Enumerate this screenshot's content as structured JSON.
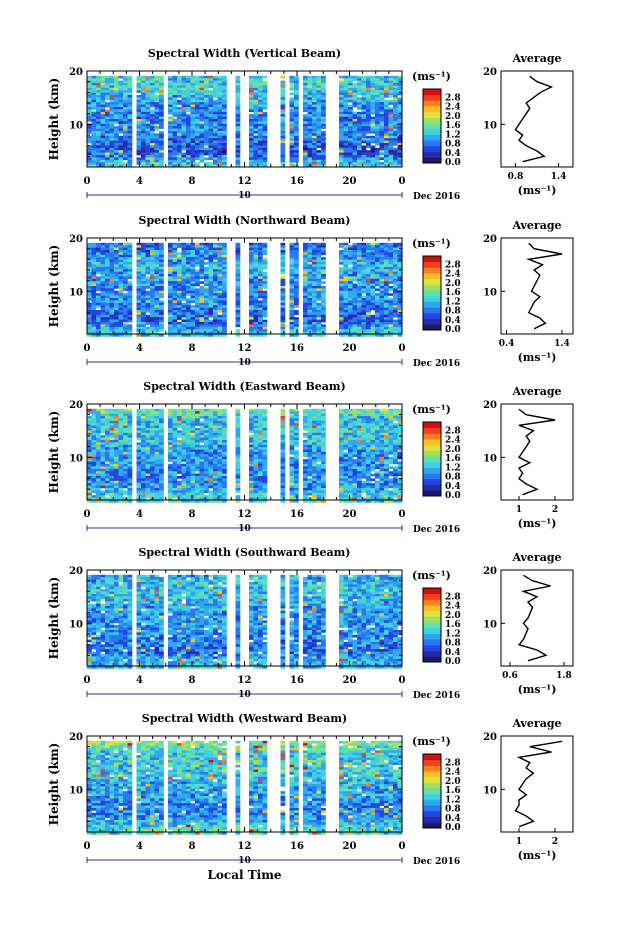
{
  "figure": {
    "xlabel": "Local Time",
    "date_label": "Dec 2016",
    "day_label": "10",
    "ylabel": "Height (km)",
    "colorbar_unit": "(ms⁻¹)",
    "avg_title": "Average",
    "avg_xlabel": "(ms⁻¹)"
  },
  "colors": {
    "scale": [
      "#1a1a66",
      "#2a2aa8",
      "#2048e0",
      "#2a78f0",
      "#30a8f0",
      "#40d0e0",
      "#60e0b0",
      "#a0e060",
      "#e0e040",
      "#f8c020",
      "#f88020",
      "#f04020",
      "#d01010"
    ],
    "gap": "#ffffff",
    "frame": "#000000"
  },
  "chart_data": [
    {
      "type": "heatmap",
      "title": "Spectral Width (Vertical Beam)",
      "x_ticks": [
        "0",
        "4",
        "8",
        "12",
        "16",
        "20",
        "0"
      ],
      "xlim": [
        0,
        24
      ],
      "y_ticks": [
        "20",
        "10"
      ],
      "ylim": [
        2,
        20
      ],
      "colorbar_ticks": [
        "2.8",
        "2.4",
        "2.0",
        "1.6",
        "1.2",
        "0.8",
        "0.4",
        "0.0"
      ],
      "colorbar_range": [
        0,
        3.2
      ],
      "data_gaps_hours": [
        [
          3.3,
          3.6
        ],
        [
          5.6,
          6.0
        ],
        [
          10.5,
          11.1
        ],
        [
          11.6,
          12.0
        ],
        [
          13.7,
          14.6
        ],
        [
          15.0,
          15.3
        ],
        [
          15.8,
          16.4
        ],
        [
          18.1,
          19.2
        ]
      ],
      "level_by_height": [
        [
          3,
          1.3
        ],
        [
          5,
          0.6
        ],
        [
          7,
          0.8
        ],
        [
          9,
          1.0
        ],
        [
          11,
          0.9
        ],
        [
          13,
          1.0
        ],
        [
          15,
          1.1
        ],
        [
          17,
          1.4
        ],
        [
          19,
          1.3
        ]
      ],
      "average": {
        "x_ticks": [
          "0.8",
          "1.4"
        ],
        "xlim": [
          0.6,
          1.6
        ],
        "y_ticks": [
          "20",
          "10"
        ],
        "profile": [
          [
            3,
            0.9
          ],
          [
            4,
            1.2
          ],
          [
            5,
            1.1
          ],
          [
            6,
            0.95
          ],
          [
            7,
            0.85
          ],
          [
            8,
            0.9
          ],
          [
            9,
            0.8
          ],
          [
            10,
            0.85
          ],
          [
            11,
            0.9
          ],
          [
            12,
            0.95
          ],
          [
            13,
            1.0
          ],
          [
            14,
            0.95
          ],
          [
            15,
            1.05
          ],
          [
            16,
            1.15
          ],
          [
            17,
            1.3
          ],
          [
            18,
            1.1
          ],
          [
            19,
            1.0
          ]
        ]
      }
    },
    {
      "type": "heatmap",
      "title": "Spectral Width (Northward Beam)",
      "x_ticks": [
        "0",
        "4",
        "8",
        "12",
        "16",
        "20",
        "0"
      ],
      "xlim": [
        0,
        24
      ],
      "y_ticks": [
        "20",
        "10"
      ],
      "ylim": [
        2,
        20
      ],
      "colorbar_ticks": [
        "2.8",
        "2.4",
        "2.0",
        "1.6",
        "1.2",
        "0.8",
        "0.4",
        "0.0"
      ],
      "colorbar_range": [
        0,
        3.2
      ],
      "data_gaps_hours": [
        [
          3.3,
          3.6
        ],
        [
          5.6,
          6.0
        ],
        [
          10.5,
          11.1
        ],
        [
          11.6,
          12.0
        ],
        [
          13.7,
          14.6
        ],
        [
          15.0,
          15.3
        ],
        [
          15.8,
          16.4
        ],
        [
          18.1,
          19.2
        ]
      ],
      "level_by_height": [
        [
          3,
          1.2
        ],
        [
          5,
          0.7
        ],
        [
          7,
          0.9
        ],
        [
          9,
          1.0
        ],
        [
          11,
          1.0
        ],
        [
          13,
          1.1
        ],
        [
          15,
          1.2
        ],
        [
          17,
          1.0
        ],
        [
          19,
          0.8
        ]
      ],
      "average": {
        "x_ticks": [
          "0.4",
          "1.4"
        ],
        "xlim": [
          0.3,
          1.6
        ],
        "y_ticks": [
          "20",
          "10"
        ],
        "profile": [
          [
            3,
            0.9
          ],
          [
            4,
            1.1
          ],
          [
            5,
            1.0
          ],
          [
            6,
            0.8
          ],
          [
            7,
            0.85
          ],
          [
            8,
            0.9
          ],
          [
            9,
            1.0
          ],
          [
            10,
            0.85
          ],
          [
            11,
            0.9
          ],
          [
            12,
            0.95
          ],
          [
            13,
            1.0
          ],
          [
            14,
            0.9
          ],
          [
            15,
            1.05
          ],
          [
            16,
            0.8
          ],
          [
            17,
            1.4
          ],
          [
            18,
            0.9
          ],
          [
            19,
            0.8
          ]
        ]
      }
    },
    {
      "type": "heatmap",
      "title": "Spectral Width (Eastward Beam)",
      "x_ticks": [
        "0",
        "4",
        "8",
        "12",
        "16",
        "20",
        "0"
      ],
      "xlim": [
        0,
        24
      ],
      "y_ticks": [
        "20",
        "10"
      ],
      "ylim": [
        2,
        20
      ],
      "colorbar_ticks": [
        "2.8",
        "2.4",
        "2.0",
        "1.6",
        "1.2",
        "0.8",
        "0.4",
        "0.0"
      ],
      "colorbar_range": [
        0,
        3.2
      ],
      "data_gaps_hours": [
        [
          3.3,
          3.6
        ],
        [
          5.6,
          6.0
        ],
        [
          10.5,
          11.1
        ],
        [
          11.6,
          12.0
        ],
        [
          13.7,
          14.6
        ],
        [
          15.0,
          15.3
        ],
        [
          15.8,
          16.4
        ],
        [
          18.1,
          19.2
        ]
      ],
      "level_by_height": [
        [
          3,
          1.4
        ],
        [
          5,
          1.0
        ],
        [
          7,
          0.9
        ],
        [
          9,
          1.1
        ],
        [
          11,
          1.0
        ],
        [
          13,
          1.2
        ],
        [
          15,
          1.3
        ],
        [
          17,
          1.2
        ],
        [
          19,
          1.6
        ]
      ],
      "average": {
        "x_ticks": [
          "1",
          "2"
        ],
        "xlim": [
          0.5,
          2.5
        ],
        "y_ticks": [
          "20",
          "10"
        ],
        "profile": [
          [
            3,
            1.1
          ],
          [
            4,
            1.5
          ],
          [
            5,
            1.2
          ],
          [
            6,
            1.0
          ],
          [
            7,
            1.1
          ],
          [
            8,
            1.0
          ],
          [
            9,
            1.3
          ],
          [
            10,
            1.0
          ],
          [
            11,
            1.1
          ],
          [
            12,
            1.2
          ],
          [
            13,
            1.3
          ],
          [
            14,
            1.2
          ],
          [
            15,
            1.4
          ],
          [
            16,
            1.0
          ],
          [
            17,
            2.0
          ],
          [
            18,
            1.2
          ],
          [
            19,
            1.0
          ]
        ]
      }
    },
    {
      "type": "heatmap",
      "title": "Spectral Width (Southward Beam)",
      "x_ticks": [
        "0",
        "4",
        "8",
        "12",
        "16",
        "20",
        "0"
      ],
      "xlim": [
        0,
        24
      ],
      "y_ticks": [
        "20",
        "10"
      ],
      "ylim": [
        2,
        20
      ],
      "colorbar_ticks": [
        "2.8",
        "2.4",
        "2.0",
        "1.6",
        "1.2",
        "0.8",
        "0.4",
        "0.0"
      ],
      "colorbar_range": [
        0,
        3.2
      ],
      "data_gaps_hours": [
        [
          3.3,
          3.6
        ],
        [
          5.6,
          6.0
        ],
        [
          10.5,
          11.1
        ],
        [
          11.6,
          12.0
        ],
        [
          13.7,
          14.6
        ],
        [
          15.0,
          15.3
        ],
        [
          15.8,
          16.4
        ],
        [
          18.1,
          19.2
        ]
      ],
      "level_by_height": [
        [
          3,
          1.2
        ],
        [
          5,
          0.8
        ],
        [
          7,
          0.9
        ],
        [
          9,
          1.0
        ],
        [
          11,
          1.0
        ],
        [
          13,
          1.1
        ],
        [
          15,
          1.2
        ],
        [
          17,
          1.3
        ],
        [
          19,
          1.1
        ]
      ],
      "average": {
        "x_ticks": [
          "0.6",
          "1.8"
        ],
        "xlim": [
          0.4,
          2.0
        ],
        "y_ticks": [
          "20",
          "10"
        ],
        "profile": [
          [
            3,
            1.0
          ],
          [
            4,
            1.4
          ],
          [
            5,
            1.2
          ],
          [
            6,
            0.8
          ],
          [
            7,
            0.9
          ],
          [
            8,
            0.95
          ],
          [
            9,
            1.0
          ],
          [
            10,
            0.9
          ],
          [
            11,
            1.0
          ],
          [
            12,
            1.05
          ],
          [
            13,
            1.1
          ],
          [
            14,
            1.0
          ],
          [
            15,
            1.2
          ],
          [
            16,
            0.9
          ],
          [
            17,
            1.5
          ],
          [
            18,
            1.1
          ],
          [
            19,
            0.9
          ]
        ]
      }
    },
    {
      "type": "heatmap",
      "title": "Spectral Width (Westward Beam)",
      "x_ticks": [
        "0",
        "4",
        "8",
        "12",
        "16",
        "20",
        "0"
      ],
      "xlim": [
        0,
        24
      ],
      "y_ticks": [
        "20",
        "10"
      ],
      "ylim": [
        2,
        20
      ],
      "colorbar_ticks": [
        "2.8",
        "2.4",
        "2.0",
        "1.6",
        "1.2",
        "0.8",
        "0.4",
        "0.0"
      ],
      "colorbar_range": [
        0,
        3.2
      ],
      "data_gaps_hours": [
        [
          3.3,
          3.6
        ],
        [
          5.6,
          6.0
        ],
        [
          10.5,
          11.1
        ],
        [
          11.6,
          12.0
        ],
        [
          13.7,
          14.6
        ],
        [
          15.0,
          15.3
        ],
        [
          15.8,
          16.4
        ],
        [
          18.1,
          19.2
        ]
      ],
      "level_by_height": [
        [
          3,
          1.4
        ],
        [
          5,
          1.0
        ],
        [
          7,
          0.9
        ],
        [
          9,
          1.1
        ],
        [
          11,
          1.1
        ],
        [
          13,
          1.3
        ],
        [
          15,
          1.4
        ],
        [
          17,
          1.3
        ],
        [
          19,
          1.8
        ]
      ],
      "average": {
        "x_ticks": [
          "1",
          "2"
        ],
        "xlim": [
          0.5,
          2.5
        ],
        "y_ticks": [
          "20",
          "10"
        ],
        "profile": [
          [
            3,
            1.0
          ],
          [
            4,
            1.4
          ],
          [
            5,
            1.2
          ],
          [
            6,
            0.9
          ],
          [
            7,
            1.0
          ],
          [
            8,
            1.0
          ],
          [
            9,
            1.2
          ],
          [
            10,
            1.0
          ],
          [
            11,
            1.1
          ],
          [
            12,
            1.2
          ],
          [
            13,
            1.4
          ],
          [
            14,
            1.2
          ],
          [
            15,
            1.3
          ],
          [
            16,
            1.0
          ],
          [
            17,
            1.9
          ],
          [
            18,
            1.3
          ],
          [
            19,
            2.2
          ]
        ]
      }
    }
  ]
}
